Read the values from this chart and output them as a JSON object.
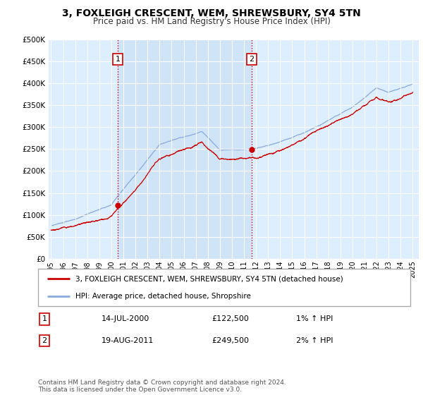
{
  "title": "3, FOXLEIGH CRESCENT, WEM, SHREWSBURY, SY4 5TN",
  "subtitle": "Price paid vs. HM Land Registry's House Price Index (HPI)",
  "ytick_values": [
    0,
    50000,
    100000,
    150000,
    200000,
    250000,
    300000,
    350000,
    400000,
    450000,
    500000
  ],
  "xlim_start": 1994.8,
  "xlim_end": 2025.5,
  "ylim_min": 0,
  "ylim_max": 500000,
  "background_color": "#ddeeff",
  "shade_color": "#d0e4f7",
  "grid_color": "#ffffff",
  "red_line_color": "#cc0000",
  "blue_line_color": "#88aadd",
  "sale1_year": 2000.54,
  "sale1_price": 122500,
  "sale1_label": "1",
  "sale2_year": 2011.63,
  "sale2_price": 249500,
  "sale2_label": "2",
  "vline_color": "#cc0000",
  "legend_label_red": "3, FOXLEIGH CRESCENT, WEM, SHREWSBURY, SY4 5TN (detached house)",
  "legend_label_blue": "HPI: Average price, detached house, Shropshire",
  "footer_text": "Contains HM Land Registry data © Crown copyright and database right 2024.\nThis data is licensed under the Open Government Licence v3.0.",
  "table_rows": [
    {
      "num": "1",
      "date": "14-JUL-2000",
      "price": "£122,500",
      "hpi": "1% ↑ HPI"
    },
    {
      "num": "2",
      "date": "19-AUG-2011",
      "price": "£249,500",
      "hpi": "2% ↑ HPI"
    }
  ],
  "xtick_years": [
    1995,
    1996,
    1997,
    1998,
    1999,
    2000,
    2001,
    2002,
    2003,
    2004,
    2005,
    2006,
    2007,
    2008,
    2009,
    2010,
    2011,
    2012,
    2013,
    2014,
    2015,
    2016,
    2017,
    2018,
    2019,
    2020,
    2021,
    2022,
    2023,
    2024,
    2025
  ]
}
